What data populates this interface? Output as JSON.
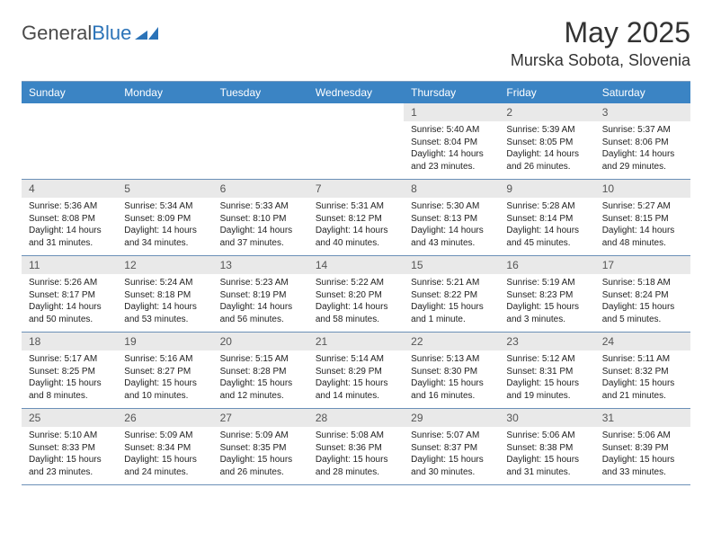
{
  "brand": {
    "name_a": "General",
    "name_b": "Blue"
  },
  "title": {
    "month": "May 2025",
    "location": "Murska Sobota, Slovenia"
  },
  "colors": {
    "header_bg": "#3b84c4",
    "row_divider": "#6b90b7",
    "daynum_bg": "#e9e9e9",
    "brand_blue": "#2b73b8"
  },
  "dow": [
    "Sunday",
    "Monday",
    "Tuesday",
    "Wednesday",
    "Thursday",
    "Friday",
    "Saturday"
  ],
  "weeks": [
    [
      {
        "n": "",
        "sr": "",
        "ss": "",
        "dl": ""
      },
      {
        "n": "",
        "sr": "",
        "ss": "",
        "dl": ""
      },
      {
        "n": "",
        "sr": "",
        "ss": "",
        "dl": ""
      },
      {
        "n": "",
        "sr": "",
        "ss": "",
        "dl": ""
      },
      {
        "n": "1",
        "sr": "Sunrise: 5:40 AM",
        "ss": "Sunset: 8:04 PM",
        "dl": "Daylight: 14 hours and 23 minutes."
      },
      {
        "n": "2",
        "sr": "Sunrise: 5:39 AM",
        "ss": "Sunset: 8:05 PM",
        "dl": "Daylight: 14 hours and 26 minutes."
      },
      {
        "n": "3",
        "sr": "Sunrise: 5:37 AM",
        "ss": "Sunset: 8:06 PM",
        "dl": "Daylight: 14 hours and 29 minutes."
      }
    ],
    [
      {
        "n": "4",
        "sr": "Sunrise: 5:36 AM",
        "ss": "Sunset: 8:08 PM",
        "dl": "Daylight: 14 hours and 31 minutes."
      },
      {
        "n": "5",
        "sr": "Sunrise: 5:34 AM",
        "ss": "Sunset: 8:09 PM",
        "dl": "Daylight: 14 hours and 34 minutes."
      },
      {
        "n": "6",
        "sr": "Sunrise: 5:33 AM",
        "ss": "Sunset: 8:10 PM",
        "dl": "Daylight: 14 hours and 37 minutes."
      },
      {
        "n": "7",
        "sr": "Sunrise: 5:31 AM",
        "ss": "Sunset: 8:12 PM",
        "dl": "Daylight: 14 hours and 40 minutes."
      },
      {
        "n": "8",
        "sr": "Sunrise: 5:30 AM",
        "ss": "Sunset: 8:13 PM",
        "dl": "Daylight: 14 hours and 43 minutes."
      },
      {
        "n": "9",
        "sr": "Sunrise: 5:28 AM",
        "ss": "Sunset: 8:14 PM",
        "dl": "Daylight: 14 hours and 45 minutes."
      },
      {
        "n": "10",
        "sr": "Sunrise: 5:27 AM",
        "ss": "Sunset: 8:15 PM",
        "dl": "Daylight: 14 hours and 48 minutes."
      }
    ],
    [
      {
        "n": "11",
        "sr": "Sunrise: 5:26 AM",
        "ss": "Sunset: 8:17 PM",
        "dl": "Daylight: 14 hours and 50 minutes."
      },
      {
        "n": "12",
        "sr": "Sunrise: 5:24 AM",
        "ss": "Sunset: 8:18 PM",
        "dl": "Daylight: 14 hours and 53 minutes."
      },
      {
        "n": "13",
        "sr": "Sunrise: 5:23 AM",
        "ss": "Sunset: 8:19 PM",
        "dl": "Daylight: 14 hours and 56 minutes."
      },
      {
        "n": "14",
        "sr": "Sunrise: 5:22 AM",
        "ss": "Sunset: 8:20 PM",
        "dl": "Daylight: 14 hours and 58 minutes."
      },
      {
        "n": "15",
        "sr": "Sunrise: 5:21 AM",
        "ss": "Sunset: 8:22 PM",
        "dl": "Daylight: 15 hours and 1 minute."
      },
      {
        "n": "16",
        "sr": "Sunrise: 5:19 AM",
        "ss": "Sunset: 8:23 PM",
        "dl": "Daylight: 15 hours and 3 minutes."
      },
      {
        "n": "17",
        "sr": "Sunrise: 5:18 AM",
        "ss": "Sunset: 8:24 PM",
        "dl": "Daylight: 15 hours and 5 minutes."
      }
    ],
    [
      {
        "n": "18",
        "sr": "Sunrise: 5:17 AM",
        "ss": "Sunset: 8:25 PM",
        "dl": "Daylight: 15 hours and 8 minutes."
      },
      {
        "n": "19",
        "sr": "Sunrise: 5:16 AM",
        "ss": "Sunset: 8:27 PM",
        "dl": "Daylight: 15 hours and 10 minutes."
      },
      {
        "n": "20",
        "sr": "Sunrise: 5:15 AM",
        "ss": "Sunset: 8:28 PM",
        "dl": "Daylight: 15 hours and 12 minutes."
      },
      {
        "n": "21",
        "sr": "Sunrise: 5:14 AM",
        "ss": "Sunset: 8:29 PM",
        "dl": "Daylight: 15 hours and 14 minutes."
      },
      {
        "n": "22",
        "sr": "Sunrise: 5:13 AM",
        "ss": "Sunset: 8:30 PM",
        "dl": "Daylight: 15 hours and 16 minutes."
      },
      {
        "n": "23",
        "sr": "Sunrise: 5:12 AM",
        "ss": "Sunset: 8:31 PM",
        "dl": "Daylight: 15 hours and 19 minutes."
      },
      {
        "n": "24",
        "sr": "Sunrise: 5:11 AM",
        "ss": "Sunset: 8:32 PM",
        "dl": "Daylight: 15 hours and 21 minutes."
      }
    ],
    [
      {
        "n": "25",
        "sr": "Sunrise: 5:10 AM",
        "ss": "Sunset: 8:33 PM",
        "dl": "Daylight: 15 hours and 23 minutes."
      },
      {
        "n": "26",
        "sr": "Sunrise: 5:09 AM",
        "ss": "Sunset: 8:34 PM",
        "dl": "Daylight: 15 hours and 24 minutes."
      },
      {
        "n": "27",
        "sr": "Sunrise: 5:09 AM",
        "ss": "Sunset: 8:35 PM",
        "dl": "Daylight: 15 hours and 26 minutes."
      },
      {
        "n": "28",
        "sr": "Sunrise: 5:08 AM",
        "ss": "Sunset: 8:36 PM",
        "dl": "Daylight: 15 hours and 28 minutes."
      },
      {
        "n": "29",
        "sr": "Sunrise: 5:07 AM",
        "ss": "Sunset: 8:37 PM",
        "dl": "Daylight: 15 hours and 30 minutes."
      },
      {
        "n": "30",
        "sr": "Sunrise: 5:06 AM",
        "ss": "Sunset: 8:38 PM",
        "dl": "Daylight: 15 hours and 31 minutes."
      },
      {
        "n": "31",
        "sr": "Sunrise: 5:06 AM",
        "ss": "Sunset: 8:39 PM",
        "dl": "Daylight: 15 hours and 33 minutes."
      }
    ]
  ]
}
